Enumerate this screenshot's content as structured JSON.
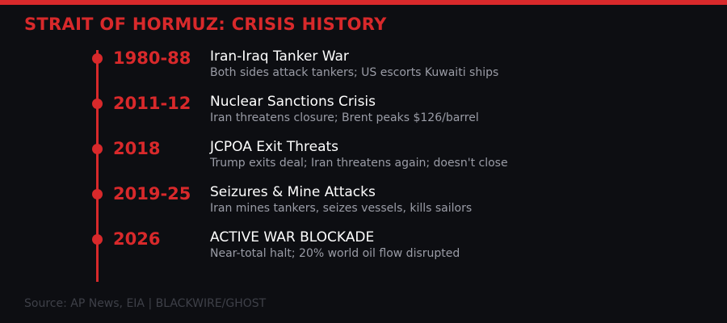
{
  "title": "STRAIT OF HORMUZ: CRISIS HISTORY",
  "colors": {
    "accent": "#d8292b",
    "background": "#0d0e12"
  },
  "events": [
    {
      "year": "1980-88",
      "title": "Iran-Iraq Tanker War",
      "desc": "Both sides attack tankers; US escorts Kuwaiti ships"
    },
    {
      "year": "2011-12",
      "title": "Nuclear Sanctions Crisis",
      "desc": "Iran threatens closure; Brent peaks $126/barrel"
    },
    {
      "year": "2018",
      "title": "JCPOA Exit Threats",
      "desc": "Trump exits deal; Iran threatens again; doesn't close"
    },
    {
      "year": "2019-25",
      "title": "Seizures & Mine Attacks",
      "desc": "Iran mines tankers, seizes vessels, kills sailors"
    },
    {
      "year": "2026",
      "title": "ACTIVE WAR BLOCKADE",
      "desc": "Near-total halt; 20% world oil flow disrupted"
    }
  ],
  "source": "Source: AP News, EIA | BLACKWIRE/GHOST"
}
